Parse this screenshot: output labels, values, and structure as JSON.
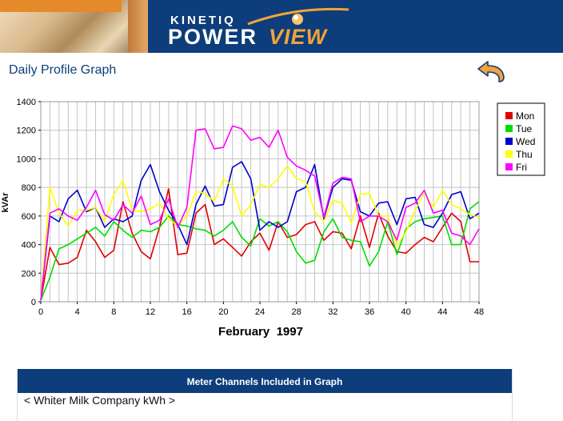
{
  "header": {
    "brand_top": "KINETIQ",
    "brand_word1": "POWER",
    "brand_word2": "VIEW"
  },
  "page": {
    "title": "Daily Profile Graph",
    "back_icon": "back-arrow-icon"
  },
  "colors": {
    "banner": "#0d3d7a",
    "accent": "#f2a33a"
  },
  "chart_data": {
    "type": "line",
    "xlabel": "February  1997",
    "ylabel": "kVAr",
    "xlim": [
      0,
      48
    ],
    "ylim": [
      0,
      1400
    ],
    "xticks": [
      0,
      4,
      8,
      12,
      16,
      20,
      24,
      28,
      32,
      36,
      40,
      44,
      48
    ],
    "yticks": [
      0,
      200,
      400,
      600,
      800,
      1000,
      1200,
      1400
    ],
    "grid": true,
    "legend_position": "right",
    "x": [
      0,
      1,
      2,
      3,
      4,
      5,
      6,
      7,
      8,
      9,
      10,
      11,
      12,
      13,
      14,
      15,
      16,
      17,
      18,
      19,
      20,
      21,
      22,
      23,
      24,
      25,
      26,
      27,
      28,
      29,
      30,
      31,
      32,
      33,
      34,
      35,
      36,
      37,
      38,
      39,
      40,
      41,
      42,
      43,
      44,
      45,
      46,
      47,
      48
    ],
    "series": [
      {
        "name": "Mon",
        "color": "#e00000",
        "values": [
          10,
          380,
          260,
          270,
          310,
          500,
          420,
          310,
          360,
          700,
          480,
          350,
          300,
          520,
          790,
          330,
          340,
          620,
          680,
          400,
          440,
          380,
          320,
          420,
          480,
          360,
          560,
          450,
          470,
          540,
          560,
          430,
          490,
          480,
          370,
          600,
          380,
          620,
          460,
          350,
          340,
          400,
          450,
          420,
          520,
          620,
          560,
          280,
          280
        ]
      },
      {
        "name": "Tue",
        "color": "#00dd00",
        "values": [
          10,
          170,
          370,
          400,
          440,
          480,
          520,
          460,
          560,
          500,
          450,
          500,
          490,
          520,
          600,
          540,
          530,
          510,
          500,
          460,
          500,
          560,
          450,
          390,
          580,
          530,
          560,
          490,
          350,
          270,
          290,
          490,
          580,
          450,
          430,
          420,
          250,
          350,
          560,
          330,
          510,
          560,
          580,
          590,
          600,
          400,
          400,
          650,
          700
        ]
      },
      {
        "name": "Wed",
        "color": "#0000cc",
        "values": [
          10,
          600,
          560,
          720,
          780,
          630,
          660,
          520,
          580,
          560,
          600,
          850,
          960,
          770,
          640,
          540,
          400,
          680,
          810,
          670,
          680,
          940,
          980,
          860,
          500,
          560,
          520,
          560,
          770,
          800,
          960,
          580,
          800,
          860,
          850,
          630,
          600,
          690,
          700,
          540,
          720,
          730,
          540,
          520,
          620,
          750,
          770,
          580,
          620
        ]
      },
      {
        "name": "Thu",
        "color": "#ffff00",
        "values": [
          10,
          800,
          620,
          530,
          640,
          640,
          660,
          560,
          750,
          850,
          640,
          630,
          650,
          690,
          580,
          530,
          600,
          770,
          760,
          700,
          860,
          810,
          600,
          680,
          820,
          800,
          860,
          950,
          860,
          840,
          630,
          560,
          710,
          690,
          550,
          750,
          760,
          600,
          600,
          390,
          490,
          640,
          760,
          660,
          780,
          680,
          650,
          610,
          590
        ]
      },
      {
        "name": "Fri",
        "color": "#ff00ff",
        "values": [
          10,
          620,
          650,
          600,
          570,
          660,
          780,
          610,
          570,
          680,
          620,
          740,
          540,
          570,
          720,
          520,
          660,
          1200,
          1210,
          1070,
          1080,
          1230,
          1210,
          1130,
          1150,
          1080,
          1200,
          1010,
          950,
          920,
          880,
          590,
          830,
          870,
          860,
          560,
          600,
          600,
          560,
          430,
          660,
          690,
          780,
          620,
          640,
          480,
          460,
          400,
          510
        ]
      }
    ]
  },
  "channels": {
    "header": "Meter Channels Included in Graph",
    "items": [
      "< Whiter Milk Company kWh >"
    ]
  }
}
